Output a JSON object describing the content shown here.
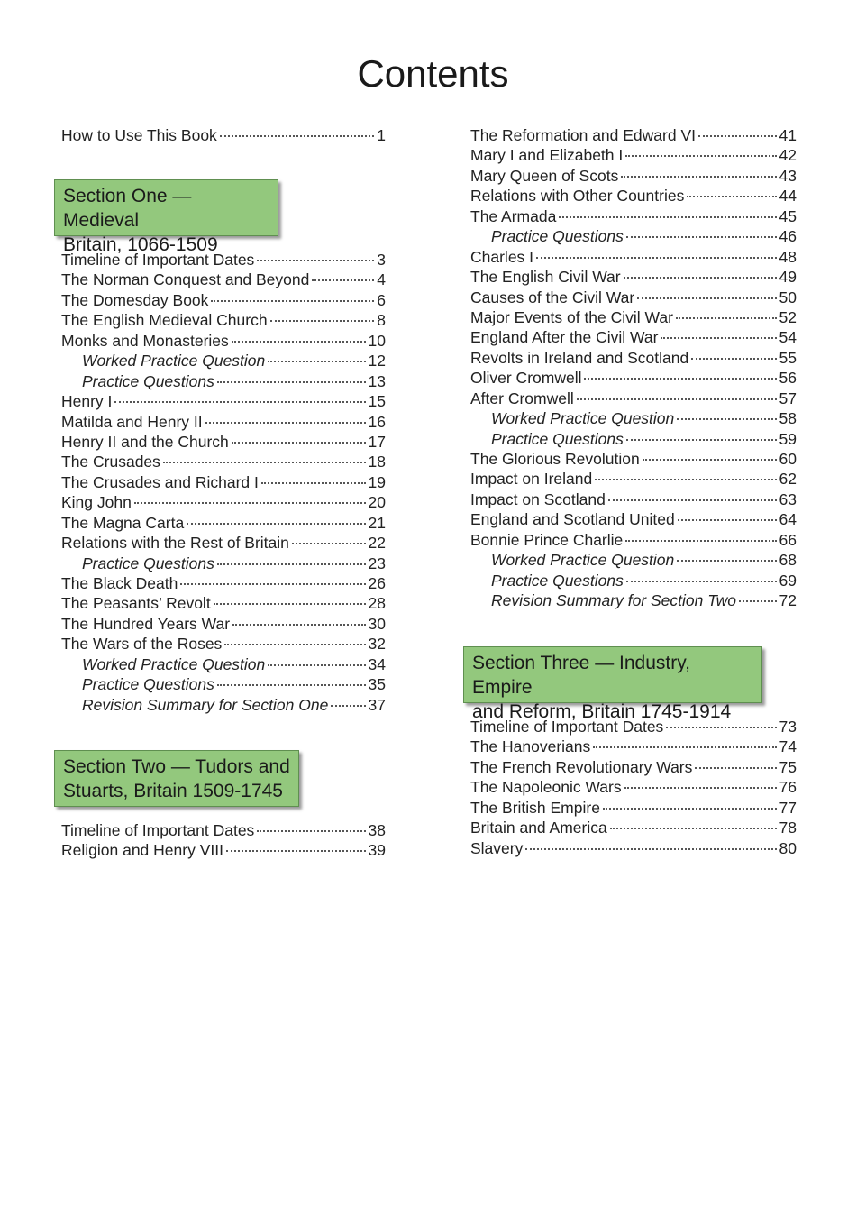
{
  "title": "Contents",
  "intro": [
    {
      "name": "How to Use This Book",
      "page": "1"
    }
  ],
  "section_one": {
    "line1": "Section One — Medieval",
    "line2": "Britain, 1066-1509",
    "entries": [
      {
        "name": "Timeline of Important Dates",
        "page": "3"
      },
      {
        "name": "The Norman Conquest and Beyond",
        "page": "4"
      },
      {
        "name": "The Domesday Book",
        "page": "6"
      },
      {
        "name": "The English Medieval Church",
        "page": "8"
      },
      {
        "name": "Monks and Monasteries",
        "page": "10"
      },
      {
        "name": "Worked Practice Question",
        "page": "12",
        "indent": true
      },
      {
        "name": "Practice Questions",
        "page": "13",
        "indent": true
      },
      {
        "name": "Henry I",
        "page": "15"
      },
      {
        "name": "Matilda and Henry II",
        "page": "16"
      },
      {
        "name": "Henry II and the Church",
        "page": "17"
      },
      {
        "name": "The Crusades",
        "page": "18"
      },
      {
        "name": "The Crusades and Richard I",
        "page": "19"
      },
      {
        "name": "King John",
        "page": "20"
      },
      {
        "name": "The Magna Carta",
        "page": "21"
      },
      {
        "name": "Relations with the Rest of Britain",
        "page": "22"
      },
      {
        "name": "Practice Questions",
        "page": "23",
        "indent": true
      },
      {
        "name": "The Black Death",
        "page": "26"
      },
      {
        "name": "The Peasants’ Revolt",
        "page": "28"
      },
      {
        "name": "The Hundred Years War",
        "page": "30"
      },
      {
        "name": "The Wars of the Roses",
        "page": "32"
      },
      {
        "name": "Worked Practice Question",
        "page": "34",
        "indent": true
      },
      {
        "name": "Practice Questions",
        "page": "35",
        "indent": true
      },
      {
        "name": "Revision Summary for Section One",
        "page": "37",
        "indent": true
      }
    ]
  },
  "section_two": {
    "line1": "Section Two — Tudors and",
    "line2": "Stuarts, Britain 1509-1745",
    "entries_left": [
      {
        "name": "Timeline of Important Dates",
        "page": "38"
      },
      {
        "name": "Religion and Henry VIII",
        "page": "39"
      }
    ],
    "entries_right": [
      {
        "name": "The Reformation and Edward VI",
        "page": "41"
      },
      {
        "name": "Mary I and Elizabeth I",
        "page": "42"
      },
      {
        "name": "Mary Queen of Scots",
        "page": "43"
      },
      {
        "name": "Relations with Other Countries",
        "page": "44"
      },
      {
        "name": "The Armada",
        "page": "45"
      },
      {
        "name": "Practice Questions",
        "page": "46",
        "indent": true
      },
      {
        "name": "Charles I",
        "page": "48"
      },
      {
        "name": "The English Civil War",
        "page": "49"
      },
      {
        "name": "Causes of the Civil War",
        "page": "50"
      },
      {
        "name": "Major Events of the Civil War",
        "page": "52"
      },
      {
        "name": "England After the Civil War",
        "page": "54"
      },
      {
        "name": "Revolts in Ireland and Scotland",
        "page": "55"
      },
      {
        "name": "Oliver Cromwell",
        "page": "56"
      },
      {
        "name": "After Cromwell",
        "page": "57"
      },
      {
        "name": "Worked Practice Question",
        "page": "58",
        "indent": true
      },
      {
        "name": "Practice Questions",
        "page": "59",
        "indent": true
      },
      {
        "name": "The Glorious Revolution",
        "page": "60"
      },
      {
        "name": "Impact on Ireland",
        "page": "62"
      },
      {
        "name": "Impact on Scotland",
        "page": "63"
      },
      {
        "name": "England and Scotland United",
        "page": "64"
      },
      {
        "name": "Bonnie Prince Charlie",
        "page": "66"
      },
      {
        "name": "Worked Practice Question",
        "page": "68",
        "indent": true
      },
      {
        "name": "Practice Questions",
        "page": "69",
        "indent": true
      },
      {
        "name": "Revision Summary for Section Two",
        "page": "72",
        "indent": true
      }
    ]
  },
  "section_three": {
    "line1": "Section Three — Industry, Empire",
    "line2": "and Reform, Britain 1745-1914",
    "entries": [
      {
        "name": "Timeline of Important Dates",
        "page": "73"
      },
      {
        "name": "The Hanoverians",
        "page": "74"
      },
      {
        "name": "The French Revolutionary Wars",
        "page": "75"
      },
      {
        "name": "The Napoleonic Wars",
        "page": "76"
      },
      {
        "name": "The British Empire",
        "page": "77"
      },
      {
        "name": "Britain and America",
        "page": "78"
      },
      {
        "name": "Slavery",
        "page": "80"
      }
    ]
  },
  "colors": {
    "section_box": "#93c87d",
    "section_border": "#5f8f50"
  }
}
